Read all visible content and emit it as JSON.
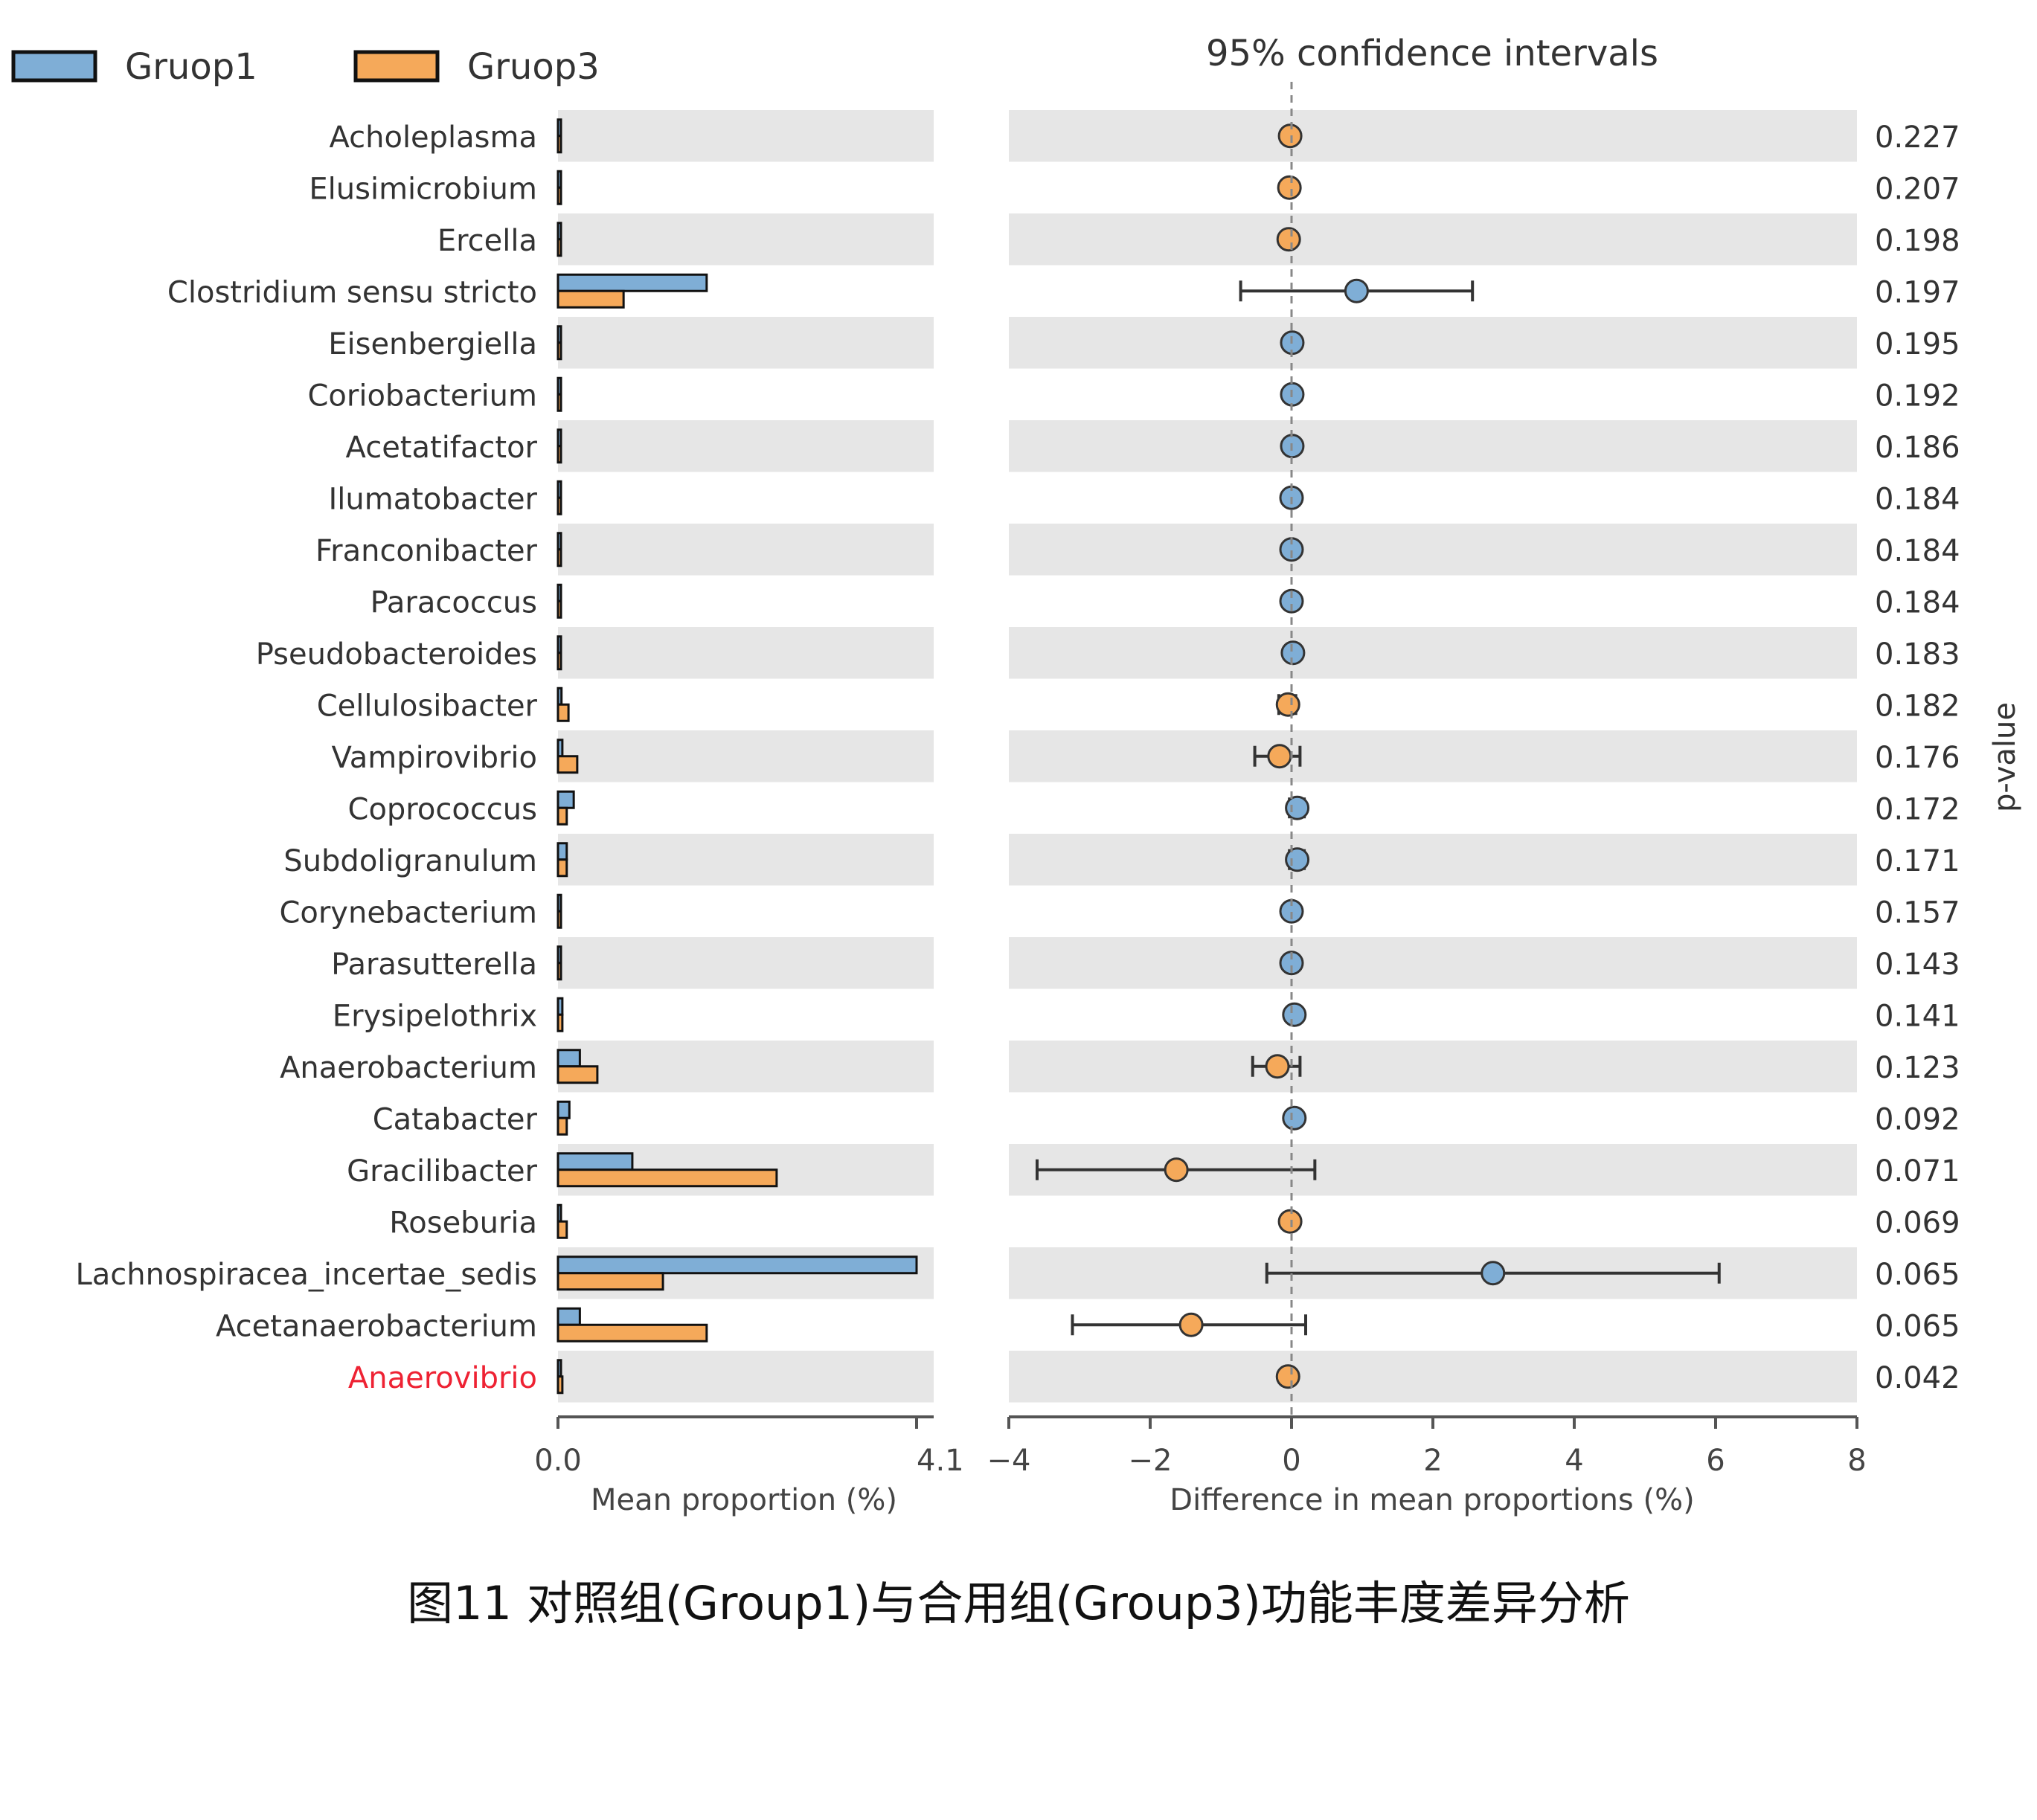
{
  "chart_data": {
    "type": "bar",
    "legend": {
      "placement": "top-left",
      "entries": [
        {
          "name": "Gruop1",
          "color": "#7faed6"
        },
        {
          "name": "Gruop3",
          "color": "#f5a95a"
        }
      ]
    },
    "categories": [
      "Acholeplasma",
      "Elusimicrobium",
      "Ercella",
      "Clostridium sensu stricto",
      "Eisenbergiella",
      "Coriobacterium",
      "Acetatifactor",
      "Ilumatobacter",
      "Franconibacter",
      "Paracoccus",
      "Pseudobacteroides",
      "Cellulosibacter",
      "Vampirovibrio",
      "Coprococcus",
      "Subdoligranulum",
      "Corynebacterium",
      "Parasutterella",
      "Erysipelothrix",
      "Anaerobacterium",
      "Catabacter",
      "Gracilibacter",
      "Roseburia",
      "Lachnospiracea_incertae_sedis",
      "Acetanaerobacterium",
      "Anaerovibrio"
    ],
    "highlighted_category": "Anaerovibrio",
    "highlight_color": "#ee2233",
    "left_panel": {
      "xlabel": "Mean proportion (%)",
      "xlim": [
        0,
        4.1
      ],
      "ticks": [
        "0.0",
        "4.1"
      ],
      "series": [
        {
          "name": "Gruop1",
          "color": "#7faed6",
          "values": [
            0.01,
            0.005,
            0.005,
            1.7,
            0.015,
            0.02,
            0.02,
            0.01,
            0.01,
            0.01,
            0.03,
            0.04,
            0.05,
            0.18,
            0.1,
            0.01,
            0.02,
            0.05,
            0.25,
            0.13,
            0.85,
            0.03,
            4.1,
            0.25,
            0.03
          ]
        },
        {
          "name": "Gruop3",
          "color": "#f5a95a",
          "values": [
            0.01,
            0.005,
            0.005,
            0.75,
            0.015,
            0.02,
            0.02,
            0.01,
            0.01,
            0.01,
            0.03,
            0.12,
            0.22,
            0.1,
            0.1,
            0.01,
            0.02,
            0.05,
            0.45,
            0.1,
            2.5,
            0.1,
            1.2,
            1.7,
            0.05
          ]
        }
      ]
    },
    "right_panel": {
      "title": "95% confidence intervals",
      "xlabel": "Difference in mean proportions (%)",
      "xlim": [
        -4,
        8
      ],
      "ticks": [
        "−4",
        "−2",
        "0",
        "2",
        "4",
        "6",
        "8"
      ],
      "tick_values": [
        -4,
        -2,
        0,
        2,
        4,
        6,
        8
      ],
      "y2label": "p-value",
      "differences": [
        -0.02,
        -0.03,
        -0.04,
        0.92,
        0.01,
        0.01,
        0.01,
        0.0,
        0.0,
        0.0,
        0.02,
        -0.05,
        -0.17,
        0.08,
        0.08,
        0.0,
        0.0,
        0.04,
        -0.2,
        0.04,
        -1.63,
        -0.02,
        2.85,
        -1.42,
        -0.05
      ],
      "ci_low": [
        -0.05,
        -0.06,
        -0.07,
        -0.72,
        -0.02,
        -0.02,
        -0.02,
        -0.02,
        -0.02,
        -0.02,
        -0.02,
        -0.18,
        -0.52,
        -0.03,
        -0.03,
        -0.02,
        -0.02,
        -0.03,
        -0.55,
        -0.03,
        -3.6,
        -0.07,
        -0.35,
        -3.1,
        -0.12
      ],
      "ci_high": [
        0.01,
        0.0,
        0.0,
        2.56,
        0.04,
        0.04,
        0.04,
        0.02,
        0.02,
        0.02,
        0.05,
        0.06,
        0.12,
        0.18,
        0.18,
        0.02,
        0.02,
        0.1,
        0.12,
        0.1,
        0.33,
        0.03,
        6.05,
        0.2,
        0.02
      ],
      "point_color_group": [
        "Gruop3",
        "Gruop3",
        "Gruop3",
        "Gruop1",
        "Gruop1",
        "Gruop1",
        "Gruop1",
        "Gruop1",
        "Gruop1",
        "Gruop1",
        "Gruop1",
        "Gruop3",
        "Gruop3",
        "Gruop1",
        "Gruop1",
        "Gruop1",
        "Gruop1",
        "Gruop1",
        "Gruop3",
        "Gruop1",
        "Gruop3",
        "Gruop3",
        "Gruop1",
        "Gruop3",
        "Gruop3"
      ],
      "p_values": [
        "0.227",
        "0.207",
        "0.198",
        "0.197",
        "0.195",
        "0.192",
        "0.186",
        "0.184",
        "0.184",
        "0.184",
        "0.183",
        "0.182",
        "0.176",
        "0.172",
        "0.171",
        "0.157",
        "0.143",
        "0.141",
        "0.123",
        "0.092",
        "0.071",
        "0.069",
        "0.065",
        "0.065",
        "0.042"
      ]
    }
  },
  "caption": "图11 对照组(Group1)与合用组(Group3)功能丰度差异分析"
}
